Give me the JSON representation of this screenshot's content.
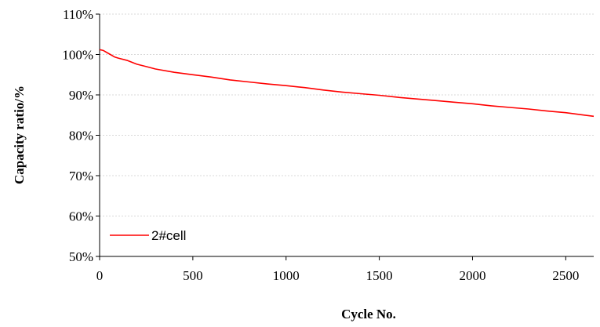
{
  "chart_data": {
    "type": "line",
    "title": "",
    "xlabel": "Cycle No.",
    "ylabel": "Capacity ratio/%",
    "xlim": [
      0,
      2650
    ],
    "ylim": [
      50,
      110
    ],
    "x_ticks": [
      0,
      500,
      1000,
      1500,
      2000,
      2500
    ],
    "x_tick_labels": [
      "0",
      "500",
      "1000",
      "1500",
      "2000",
      "2500"
    ],
    "y_ticks": [
      50,
      60,
      70,
      80,
      90,
      100,
      110
    ],
    "y_tick_labels": [
      "50%",
      "60%",
      "70%",
      "80%",
      "90%",
      "100%",
      "110%"
    ],
    "grid": "horizontal",
    "legend_position": "bottom-left",
    "series": [
      {
        "name": "2#cell",
        "color": "#ff0000",
        "x": [
          0,
          20,
          50,
          80,
          100,
          150,
          200,
          250,
          300,
          400,
          500,
          600,
          700,
          800,
          900,
          1000,
          1100,
          1200,
          1300,
          1400,
          1500,
          1600,
          1700,
          1800,
          1900,
          2000,
          2100,
          2200,
          2300,
          2400,
          2500,
          2600,
          2650
        ],
        "y": [
          101.2,
          101.0,
          100.2,
          99.4,
          99.1,
          98.5,
          97.6,
          97.0,
          96.4,
          95.6,
          95.0,
          94.4,
          93.7,
          93.2,
          92.7,
          92.3,
          91.8,
          91.2,
          90.7,
          90.3,
          89.9,
          89.4,
          89.0,
          88.6,
          88.2,
          87.8,
          87.3,
          86.9,
          86.5,
          86.0,
          85.6,
          85.0,
          84.7
        ]
      }
    ]
  }
}
